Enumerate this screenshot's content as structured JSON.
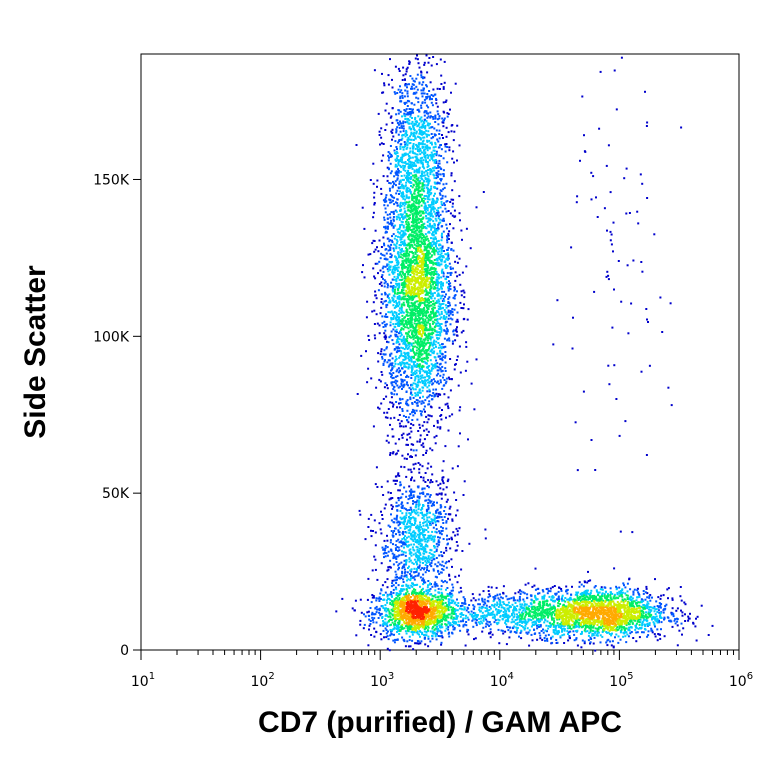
{
  "chart_data": {
    "type": "scatter",
    "style": "density-colored flow cytometry dot plot",
    "xlabel": "CD7 (purified) / GAM APC",
    "ylabel": "Side Scatter",
    "x_scale": "log",
    "xlim": [
      10,
      1000000
    ],
    "ylim": [
      0,
      190000
    ],
    "x_ticks": [
      {
        "base": "10",
        "exp": "1",
        "value": 10
      },
      {
        "base": "10",
        "exp": "2",
        "value": 100
      },
      {
        "base": "10",
        "exp": "3",
        "value": 1000
      },
      {
        "base": "10",
        "exp": "4",
        "value": 10000
      },
      {
        "base": "10",
        "exp": "5",
        "value": 100000
      },
      {
        "base": "10",
        "exp": "6",
        "value": 1000000
      }
    ],
    "y_ticks": [
      {
        "label": "0",
        "value": 0
      },
      {
        "label": "50K",
        "value": 50000
      },
      {
        "label": "100K",
        "value": 100000
      },
      {
        "label": "150K",
        "value": 150000
      }
    ],
    "density_colors": [
      "#0000cc",
      "#0055ff",
      "#00ccff",
      "#00ee66",
      "#ccee00",
      "#ffaa00",
      "#ff2200"
    ],
    "populations": [
      {
        "x_center": 2000,
        "y_center": 12000,
        "x_spread_decades": 0.18,
        "y_spread": 4000,
        "count": 1400
      },
      {
        "x_center": 70000,
        "y_center": 12000,
        "x_spread_decades": 0.28,
        "y_spread": 4000,
        "count": 1800
      },
      {
        "x_center": 15000,
        "y_center": 12000,
        "x_spread_decades": 0.3,
        "y_spread": 3500,
        "count": 700
      },
      {
        "x_center": 2000,
        "y_center": 35000,
        "x_spread_decades": 0.16,
        "y_spread": 11000,
        "count": 1000
      },
      {
        "x_center": 2000,
        "y_center": 115000,
        "x_spread_decades": 0.15,
        "y_spread": 22000,
        "count": 3500
      },
      {
        "x_center": 2000,
        "y_center": 160000,
        "x_spread_decades": 0.13,
        "y_spread": 15000,
        "count": 900
      },
      {
        "x_center": 80000,
        "y_center": 120000,
        "x_spread_decades": 0.25,
        "y_spread": 35000,
        "count": 90
      }
    ]
  }
}
